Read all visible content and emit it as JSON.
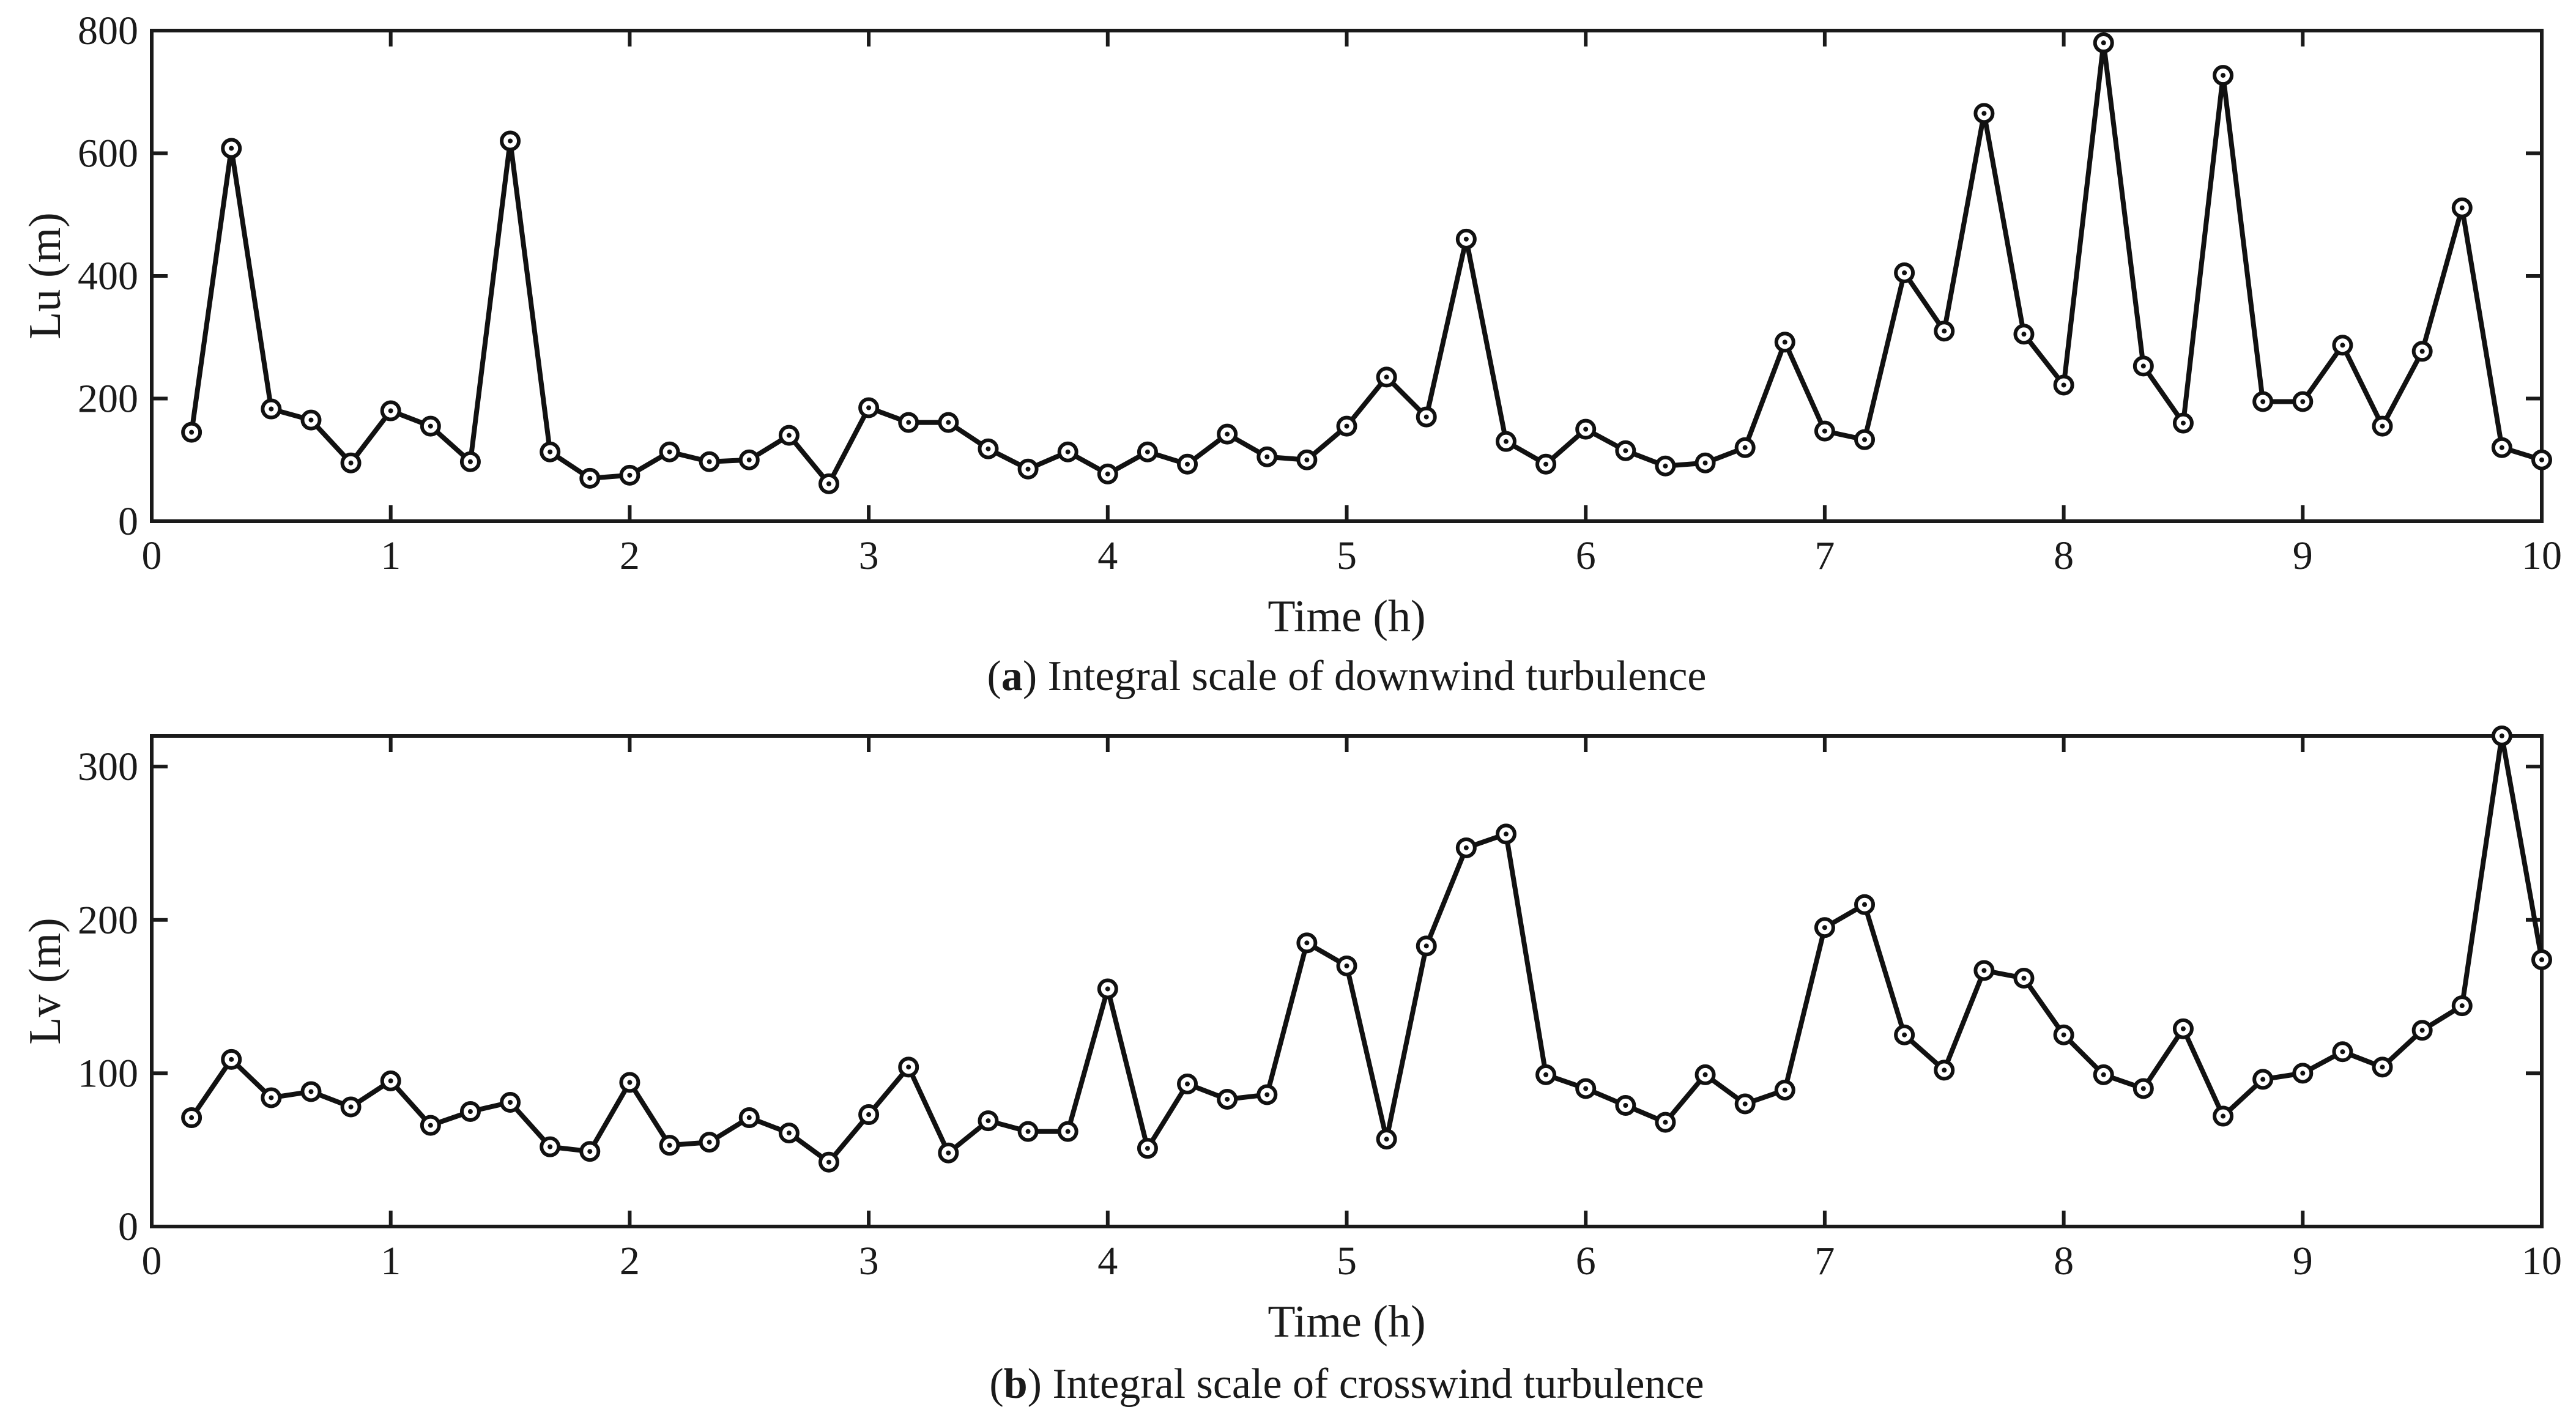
{
  "chart_data": [
    {
      "type": "line",
      "id": "a",
      "caption_letter": "a",
      "caption_text": "Integral scale of downwind turbulence",
      "xlabel": "Time (h)",
      "ylabel": "Lu (m)",
      "xlim": [
        0,
        10
      ],
      "ylim": [
        0,
        800
      ],
      "xticks": [
        "0",
        "1",
        "2",
        "3",
        "4",
        "5",
        "6",
        "7",
        "8",
        "9",
        "10"
      ],
      "yticks": [
        "0",
        "200",
        "400",
        "600",
        "800"
      ],
      "x": [
        0.1667,
        0.3333,
        0.5,
        0.6667,
        0.8333,
        1.0,
        1.1667,
        1.3333,
        1.5,
        1.6667,
        1.8333,
        2.0,
        2.1667,
        2.3333,
        2.5,
        2.6667,
        2.8333,
        3.0,
        3.1667,
        3.3333,
        3.5,
        3.6667,
        3.8333,
        4.0,
        4.1667,
        4.3333,
        4.5,
        4.6667,
        4.8333,
        5.0,
        5.1667,
        5.3333,
        5.5,
        5.6667,
        5.8333,
        6.0,
        6.1667,
        6.3333,
        6.5,
        6.6667,
        6.8333,
        7.0,
        7.1667,
        7.3333,
        7.5,
        7.6667,
        7.8333,
        8.0,
        8.1667,
        8.3333,
        8.5,
        8.6667,
        8.8333,
        9.0,
        9.1667,
        9.3333,
        9.5,
        9.6667,
        9.8333,
        10.0
      ],
      "series": [
        {
          "name": "Lu",
          "values": [
            145,
            608,
            183,
            165,
            95,
            180,
            155,
            97,
            620,
            113,
            70,
            75,
            113,
            97,
            100,
            140,
            61,
            185,
            161,
            161,
            118,
            85,
            113,
            77,
            113,
            93,
            142,
            105,
            100,
            155,
            235,
            170,
            460,
            130,
            93,
            150,
            115,
            90,
            95,
            120,
            292,
            147,
            133,
            405,
            310,
            665,
            305,
            222,
            780,
            253,
            160,
            727,
            195,
            195,
            287,
            155,
            277,
            511,
            120,
            100
          ]
        }
      ]
    },
    {
      "type": "line",
      "id": "b",
      "caption_letter": "b",
      "caption_text": "Integral scale of crosswind turbulence",
      "xlabel": "Time (h)",
      "ylabel": "Lv (m)",
      "xlim": [
        0,
        10
      ],
      "ylim": [
        0,
        320
      ],
      "xticks": [
        "0",
        "1",
        "2",
        "3",
        "4",
        "5",
        "6",
        "7",
        "8",
        "9",
        "10"
      ],
      "yticks": [
        "0",
        "100",
        "200",
        "300"
      ],
      "x": [
        0.1667,
        0.3333,
        0.5,
        0.6667,
        0.8333,
        1.0,
        1.1667,
        1.3333,
        1.5,
        1.6667,
        1.8333,
        2.0,
        2.1667,
        2.3333,
        2.5,
        2.6667,
        2.8333,
        3.0,
        3.1667,
        3.3333,
        3.5,
        3.6667,
        3.8333,
        4.0,
        4.1667,
        4.3333,
        4.5,
        4.6667,
        4.8333,
        5.0,
        5.1667,
        5.3333,
        5.5,
        5.6667,
        5.8333,
        6.0,
        6.1667,
        6.3333,
        6.5,
        6.6667,
        6.8333,
        7.0,
        7.1667,
        7.3333,
        7.5,
        7.6667,
        7.8333,
        8.0,
        8.1667,
        8.3333,
        8.5,
        8.6667,
        8.8333,
        9.0,
        9.1667,
        9.3333,
        9.5,
        9.6667,
        9.8333,
        10.0
      ],
      "series": [
        {
          "name": "Lv",
          "values": [
            71,
            109,
            84,
            88,
            78,
            95,
            66,
            75,
            81,
            52,
            49,
            94,
            53,
            55,
            71,
            61,
            42,
            73,
            104,
            48,
            69,
            62,
            62,
            155,
            51,
            93,
            83,
            86,
            185,
            170,
            57,
            183,
            247,
            256,
            99,
            90,
            79,
            68,
            99,
            80,
            89,
            195,
            210,
            125,
            102,
            167,
            162,
            125,
            99,
            90,
            129,
            72,
            96,
            100,
            114,
            104,
            128,
            144,
            320,
            174
          ]
        }
      ]
    }
  ]
}
